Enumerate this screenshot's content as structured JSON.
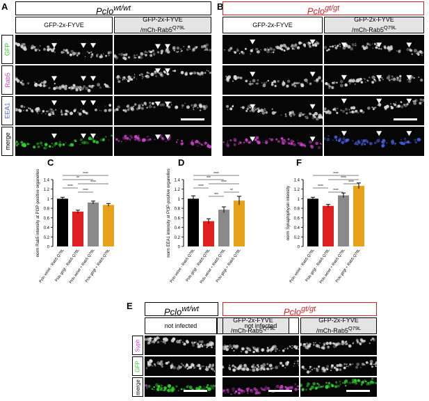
{
  "panels": {
    "A": {
      "label": "A",
      "genotype": "Pclo",
      "genotype_sup": "wt/wt",
      "cols": [
        "GFP-2x-FYVE",
        "GFP-2x-FYVE",
        "/mCh-Rab5",
        "Q79L"
      ],
      "rows": [
        "GFP",
        "Rab5",
        "EEA1",
        "merge"
      ]
    },
    "B": {
      "label": "B",
      "genotype": "Pclo",
      "genotype_sup": "gt/gt",
      "cols": [
        "GFP-2x-FYVE",
        "GFP-2x-FYVE",
        "/mCh-Rab5",
        "Q79L"
      ]
    },
    "C": {
      "label": "C"
    },
    "D": {
      "label": "D"
    },
    "F": {
      "label": "F"
    },
    "E": {
      "label": "E",
      "genotype_a": "Pclo",
      "genotype_a_sup": "wt/wt",
      "genotype_b": "Pclo",
      "genotype_b_sup": "gt/gt",
      "cols": [
        "not infected",
        "GFP-2x-FYVE",
        "/mCh-Rab5",
        "Q79L"
      ],
      "rows": [
        "Syph",
        "GFP",
        "merge"
      ]
    }
  },
  "colors": {
    "black": "#000000",
    "red": "#e02020",
    "grey": "#8a8a8a",
    "gold": "#e8a21a",
    "gfp": "#2fd12f",
    "rab5": "#d040d0",
    "eea1": "#4a60e0",
    "genotype_red": "#d32020"
  },
  "chart_data": [
    {
      "type": "bar",
      "panel": "C",
      "ylabel": "norm Rab5 intensity at PI3P-positive organelles",
      "ylim": [
        0,
        1.4
      ],
      "yticks": [
        "0",
        "0.2",
        "0.4",
        "0.6",
        "0.8",
        "1",
        "1.2",
        "1.4"
      ],
      "categories": [
        "Pclo wt/wt - Rab5 Q79L",
        "Pclo gt/gt - Rab5 Q79L",
        "Pclo wt/wt + Rab5 Q79L",
        "Pclo gt/gt + Rab5 Q79L"
      ],
      "values": [
        1.0,
        0.73,
        0.92,
        0.87
      ],
      "errors": [
        0.03,
        0.03,
        0.03,
        0.03
      ],
      "significance": [
        {
          "from": 0,
          "to": 3,
          "label": "****"
        },
        {
          "from": 0,
          "to": 2,
          "label": "**"
        },
        {
          "from": 1,
          "to": 3,
          "label": "****"
        },
        {
          "from": 0,
          "to": 1,
          "label": "****"
        },
        {
          "from": 1,
          "to": 2,
          "label": "****"
        }
      ]
    },
    {
      "type": "bar",
      "panel": "D",
      "ylabel": "norm EEA1 intensity at PI3P-positive organelles",
      "ylim": [
        0,
        1.4
      ],
      "yticks": [
        "0",
        "0.2",
        "0.4",
        "0.6",
        "0.8",
        "1",
        "1.2",
        "1.4"
      ],
      "categories": [
        "Pclo wt/wt - Rab5 Q79L",
        "Pclo gt/gt - Rab5 Q79L",
        "Pclo wt/wt + Rab5 Q79L",
        "Pclo gt/gt + Rab5 Q79L"
      ],
      "values": [
        1.0,
        0.53,
        0.77,
        0.96
      ],
      "errors": [
        0.06,
        0.05,
        0.06,
        0.09
      ],
      "significance": [
        {
          "from": 0,
          "to": 3,
          "label": "****"
        },
        {
          "from": 0,
          "to": 2,
          "label": "***"
        },
        {
          "from": 1,
          "to": 3,
          "label": "****"
        },
        {
          "from": 0,
          "to": 1,
          "label": "****"
        },
        {
          "from": 2,
          "to": 3,
          "label": "**"
        },
        {
          "from": 1,
          "to": 2,
          "label": "***"
        }
      ]
    },
    {
      "type": "bar",
      "panel": "F",
      "ylabel": "norm Synaptophysin intensity",
      "ylim": [
        0,
        1.4
      ],
      "yticks": [
        "0",
        "0.2",
        "0.4",
        "0.6",
        "0.8",
        "1",
        "1.2",
        "1.4"
      ],
      "categories": [
        "Pclo wt/wt - Rab5 Q79L",
        "Pclo gt/gt - Rab5 Q79L",
        "Pclo wt/wt + Rab5 Q79L",
        "Pclo gt/gt + Rab5 Q79L"
      ],
      "values": [
        1.0,
        0.85,
        1.07,
        1.27
      ],
      "errors": [
        0.03,
        0.03,
        0.05,
        0.06
      ],
      "significance": [
        {
          "from": 0,
          "to": 3,
          "label": "****"
        },
        {
          "from": 1,
          "to": 3,
          "label": "****"
        },
        {
          "from": 2,
          "to": 3,
          "label": "****"
        },
        {
          "from": 0,
          "to": 1,
          "label": "****"
        },
        {
          "from": 1,
          "to": 2,
          "label": "****"
        }
      ]
    }
  ]
}
